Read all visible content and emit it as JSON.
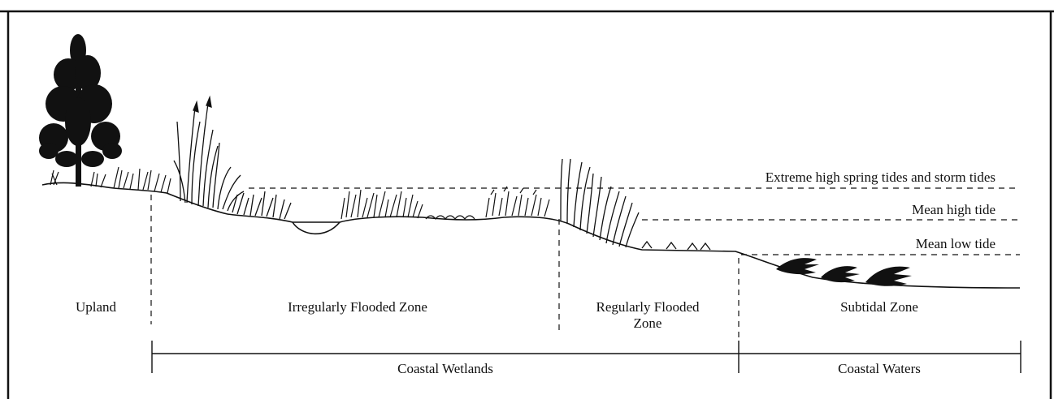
{
  "tide_levels": [
    {
      "label": "Extreme  high spring tides and storm tides"
    },
    {
      "label": "Mean high tide"
    },
    {
      "label": "Mean low tide"
    }
  ],
  "zones": {
    "upland": "Upland",
    "irregular": "Irregularly Flooded Zone",
    "regular_line1": "Regularly Flooded",
    "regular_line2": "Zone",
    "subtidal": "Subtidal Zone"
  },
  "groups": {
    "wetlands": "Coastal Wetlands",
    "waters": "Coastal Waters"
  },
  "colors": {
    "ink": "#111111",
    "background": "#ffffff"
  }
}
